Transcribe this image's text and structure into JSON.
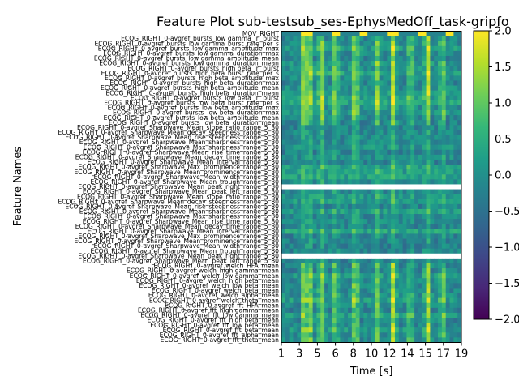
{
  "chart_data": {
    "type": "heatmap",
    "title": "Feature Plot sub-testsub_ses-EphysMedOff_task-gripfo",
    "xlabel": "Time [s]",
    "ylabel": "Feature Names",
    "x_ticks": [
      "1",
      "3",
      "5",
      "6",
      "8",
      "10",
      "12",
      "14",
      "15",
      "17",
      "19"
    ],
    "x_range": [
      1,
      19
    ],
    "color_range": [
      -2.0,
      2.0
    ],
    "colorbar_ticks": [
      "2.0",
      "1.5",
      "1.0",
      "0.5",
      "0.0",
      "−0.5",
      "−1.0",
      "−1.5",
      "−2.0"
    ],
    "colormap": [
      "#440154",
      "#482878",
      "#3e4989",
      "#31688e",
      "#26828e",
      "#1f9e89",
      "#35b779",
      "#6ece58",
      "#b5de2b",
      "#fde725"
    ],
    "features": [
      "MOV_RIGHT",
      "ECOG_RIGHT_0-avgref_bursts_low gamma_in_burst",
      "ECOG_RIGHT_0-avgref_bursts_low gamma_burst_rate_per_s",
      "ECOG_RIGHT_0-avgref_bursts_low gamma_amplitude_max",
      "ECOG_RIGHT_0-avgref_bursts_low gamma_duration_max",
      "ECOG_RIGHT_0-avgref_bursts_low gamma_amplitude_mean",
      "ECOG_RIGHT_0-avgref_bursts_low gamma_duration_mean",
      "ECOG_RIGHT_0-avgref_bursts_high beta_in_burst",
      "ECOG_RIGHT_0-avgref_bursts_high beta_burst_rate_per_s",
      "ECOG_RIGHT_0-avgref_bursts_high beta_amplitude_max",
      "ECOG_RIGHT_0-avgref_bursts_high beta_duration_max",
      "ECOG_RIGHT_0-avgref_bursts_high beta_amplitude_mean",
      "ECOG_RIGHT_0-avgref_bursts_high beta_duration_mean",
      "ECOG_RIGHT_0-avgref_bursts_low beta_in_burst",
      "ECOG_RIGHT_0-avgref_bursts_low beta_burst_rate_per_s",
      "ECOG_RIGHT_0-avgref_bursts_low beta_amplitude_max",
      "ECOG_RIGHT_0-avgref_bursts_low beta_duration_max",
      "ECOG_RIGHT_0-avgref_bursts_low beta_amplitude_mean",
      "ECOG_RIGHT_0-avgref_bursts_low beta_duration_mean",
      "ECOG_RIGHT_0-avgref_Sharpwave_Mean_slope_ratio_range_5_30",
      "ECOG_RIGHT_0-avgref_Sharpwave_Mean_decay_steepness_range_5_30",
      "ECOG_RIGHT_0-avgref_Sharpwave_Mean_rise_steepness_range_5_30",
      "ECOG_RIGHT_0-avgref_Sharpwave_Mean_sharpness_range_5_30",
      "ECOG_RIGHT_0-avgref_Sharpwave_Max_sharpness_range_5_30",
      "ECOG_RIGHT_0-avgref_Sharpwave_Mean_rise_time_range_5_30",
      "ECOG_RIGHT_0-avgref_Sharpwave_Mean_decay_time_range_5_30",
      "ECOG_RIGHT_0-avgref_Sharpwave_Mean_interval_range_5_30",
      "ECOG_RIGHT_0-avgref_Sharpwave_Max_prominence_range_5_30",
      "ECOG_RIGHT_0-avgref_Sharpwave_Mean_prominence_range_5_30",
      "ECOG_RIGHT_0-avgref_Sharpwave_Mean_width_range_5_30",
      "ECOG_RIGHT_0-avgref_Sharpwave_Mean_trough_range_5_30",
      "ECOG_RIGHT_0-avgref_Sharpwave_Mean_peak_right_range_5_30",
      "ECOG_RIGHT_0-avgref_Sharpwave_Mean_peak_left_range_5_30",
      "ECOG_RIGHT_0-avgref_Sharpwave_Mean_slope_ratio_range_5_80",
      "ECOG_RIGHT_0-avgref_Sharpwave_Mean_decay_steepness_range_5_80",
      "ECOG_RIGHT_0-avgref_Sharpwave_Mean_rise_steepness_range_5_80",
      "ECOG_RIGHT_0-avgref_Sharpwave_Mean_sharpness_range_5_80",
      "ECOG_RIGHT_0-avgref_Sharpwave_Max_sharpness_range_5_80",
      "ECOG_RIGHT_0-avgref_Sharpwave_Mean_rise_time_range_5_80",
      "ECOG_RIGHT_0-avgref_Sharpwave_Mean_decay_time_range_5_80",
      "ECOG_RIGHT_0-avgref_Sharpwave_Mean_interval_range_5_80",
      "ECOG_RIGHT_0-avgref_Sharpwave_Max_prominence_range_5_80",
      "ECOG_RIGHT_0-avgref_Sharpwave_Mean_prominence_range_5_80",
      "ECOG_RIGHT_0-avgref_Sharpwave_Mean_width_range_5_80",
      "ECOG_RIGHT_0-avgref_Sharpwave_Mean_trough_range_5_80",
      "ECOG_RIGHT_0-avgref_Sharpwave_Mean_peak_right_range_5_80",
      "ECOG_RIGHT_0-avgref_Sharpwave_Mean_peak_left_range_5_80",
      "ECOG_RIGHT_0-avgref_welch_HFA_mean",
      "ECOG_RIGHT_0-avgref_welch_high gamma_mean",
      "ECOG_RIGHT_0-avgref_welch_low gamma_mean",
      "ECOG_RIGHT_0-avgref_welch_high beta_mean",
      "ECOG_RIGHT_0-avgref_welch_low beta_mean",
      "ECOG_RIGHT_0-avgref_welch_beta_mean",
      "ECOG_RIGHT_0-avgref_welch_alpha_mean",
      "ECOG_RIGHT_0-avgref_welch_theta_mean",
      "ECOG_RIGHT_0-avgref_fft_HFA_mean",
      "ECOG_RIGHT_0-avgref_fft_high gamma_mean",
      "ECOG_RIGHT_0-avgref_fft_low gamma_mean",
      "ECOG_RIGHT_0-avgref_fft_high beta_mean",
      "ECOG_RIGHT_0-avgref_fft_low beta_mean",
      "ECOG_RIGHT_0-avgref_fft_beta_mean",
      "ECOG_RIGHT_0-avgref_fft_alpha_mean",
      "ECOG_RIGHT_0-avgref_fft_theta_mean"
    ],
    "blank_rows": [
      "ECOG_RIGHT_0-avgref_Sharpwave_Mean_peak_right_range_5_30",
      "ECOG_RIGHT_0-avgref_Sharpwave_Mean_peak_right_range_5_80"
    ],
    "time_bins": 46,
    "event_times": [
      3.3,
      3.9,
      5.0,
      6.4,
      8.4,
      10.6,
      12.2,
      13.9,
      15.6,
      17.1
    ]
  }
}
